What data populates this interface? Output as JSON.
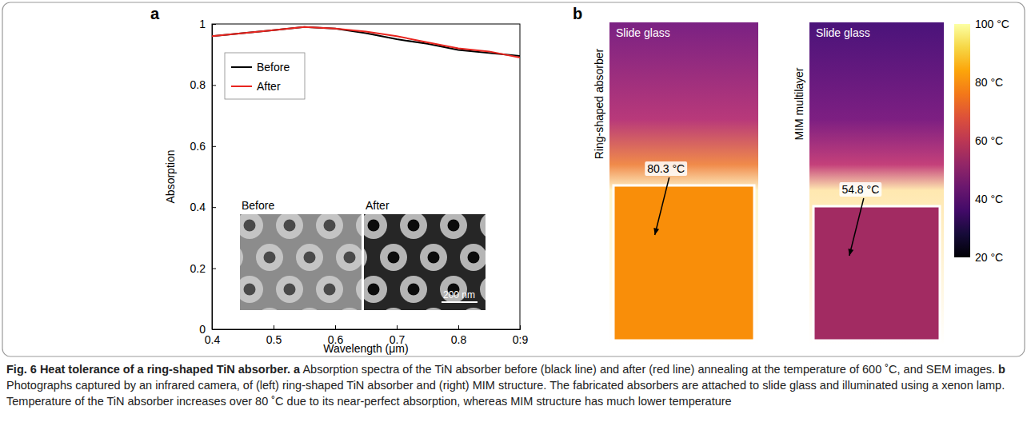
{
  "panels": [
    "a",
    "b"
  ],
  "chart_data": {
    "type": "line",
    "x_label": "Wavelength (μm)",
    "y_label": "Absorption",
    "x": [
      0.4,
      0.45,
      0.5,
      0.55,
      0.6,
      0.65,
      0.7,
      0.75,
      0.8,
      0.85,
      0.9
    ],
    "series": [
      {
        "name": "Before",
        "color": "#000000",
        "values": [
          0.96,
          0.97,
          0.98,
          0.99,
          0.985,
          0.97,
          0.95,
          0.935,
          0.915,
          0.905,
          0.895
        ]
      },
      {
        "name": "After",
        "color": "#e8251f",
        "values": [
          0.96,
          0.97,
          0.98,
          0.99,
          0.985,
          0.975,
          0.96,
          0.94,
          0.92,
          0.91,
          0.89
        ]
      }
    ],
    "xlim": [
      0.4,
      0.9
    ],
    "xticks": [
      0.4,
      0.5,
      0.6,
      0.7,
      0.8,
      {
        "value": 0.9,
        "label": "0:9"
      }
    ],
    "ylim": [
      0,
      1
    ],
    "yticks": [
      0,
      0.2,
      0.4,
      0.6,
      0.8,
      1
    ],
    "legend": "upper left",
    "annotations": [
      "Before",
      "After",
      "200 nm"
    ]
  },
  "thermal": {
    "images": [
      {
        "label": "Ring-shaped absorber",
        "substrate": "Slide glass",
        "temperature": {
          "value": 80.3,
          "label": "80.3 °C"
        }
      },
      {
        "label": "MIM multilayer",
        "substrate": "Slide glass",
        "temperature": {
          "value": 54.8,
          "label": "54.8 °C"
        }
      }
    ],
    "colorbar": {
      "range": [
        20,
        100
      ],
      "ticks": [
        {
          "value": 100,
          "label": "100 °C"
        },
        {
          "value": 80,
          "label": "80 °C"
        },
        {
          "value": 60,
          "label": "60 °C"
        },
        {
          "value": 40,
          "label": "40 °C"
        },
        {
          "value": 20,
          "label": "20 °C"
        }
      ]
    }
  },
  "caption": {
    "title": "Fig. 6 Heat tolerance of a ring-shaped TiN absorber.",
    "parts": [
      {
        "label": "a",
        "text": "Absorption spectra of the TiN absorber before (black line) and after (red line) annealing at the temperature of 600 ˚C, and SEM images."
      },
      {
        "label": "b",
        "text": "Photographs captured by an infrared camera, of (left) ring-shaped TiN absorber and (right) MIM structure. The fabricated absorbers are attached to slide glass and illuminated using a xenon lamp. Temperature of the TiN absorber increases over 80 ˚C due to its near-perfect absorption, whereas MIM structure has much lower temperature"
      }
    ]
  }
}
